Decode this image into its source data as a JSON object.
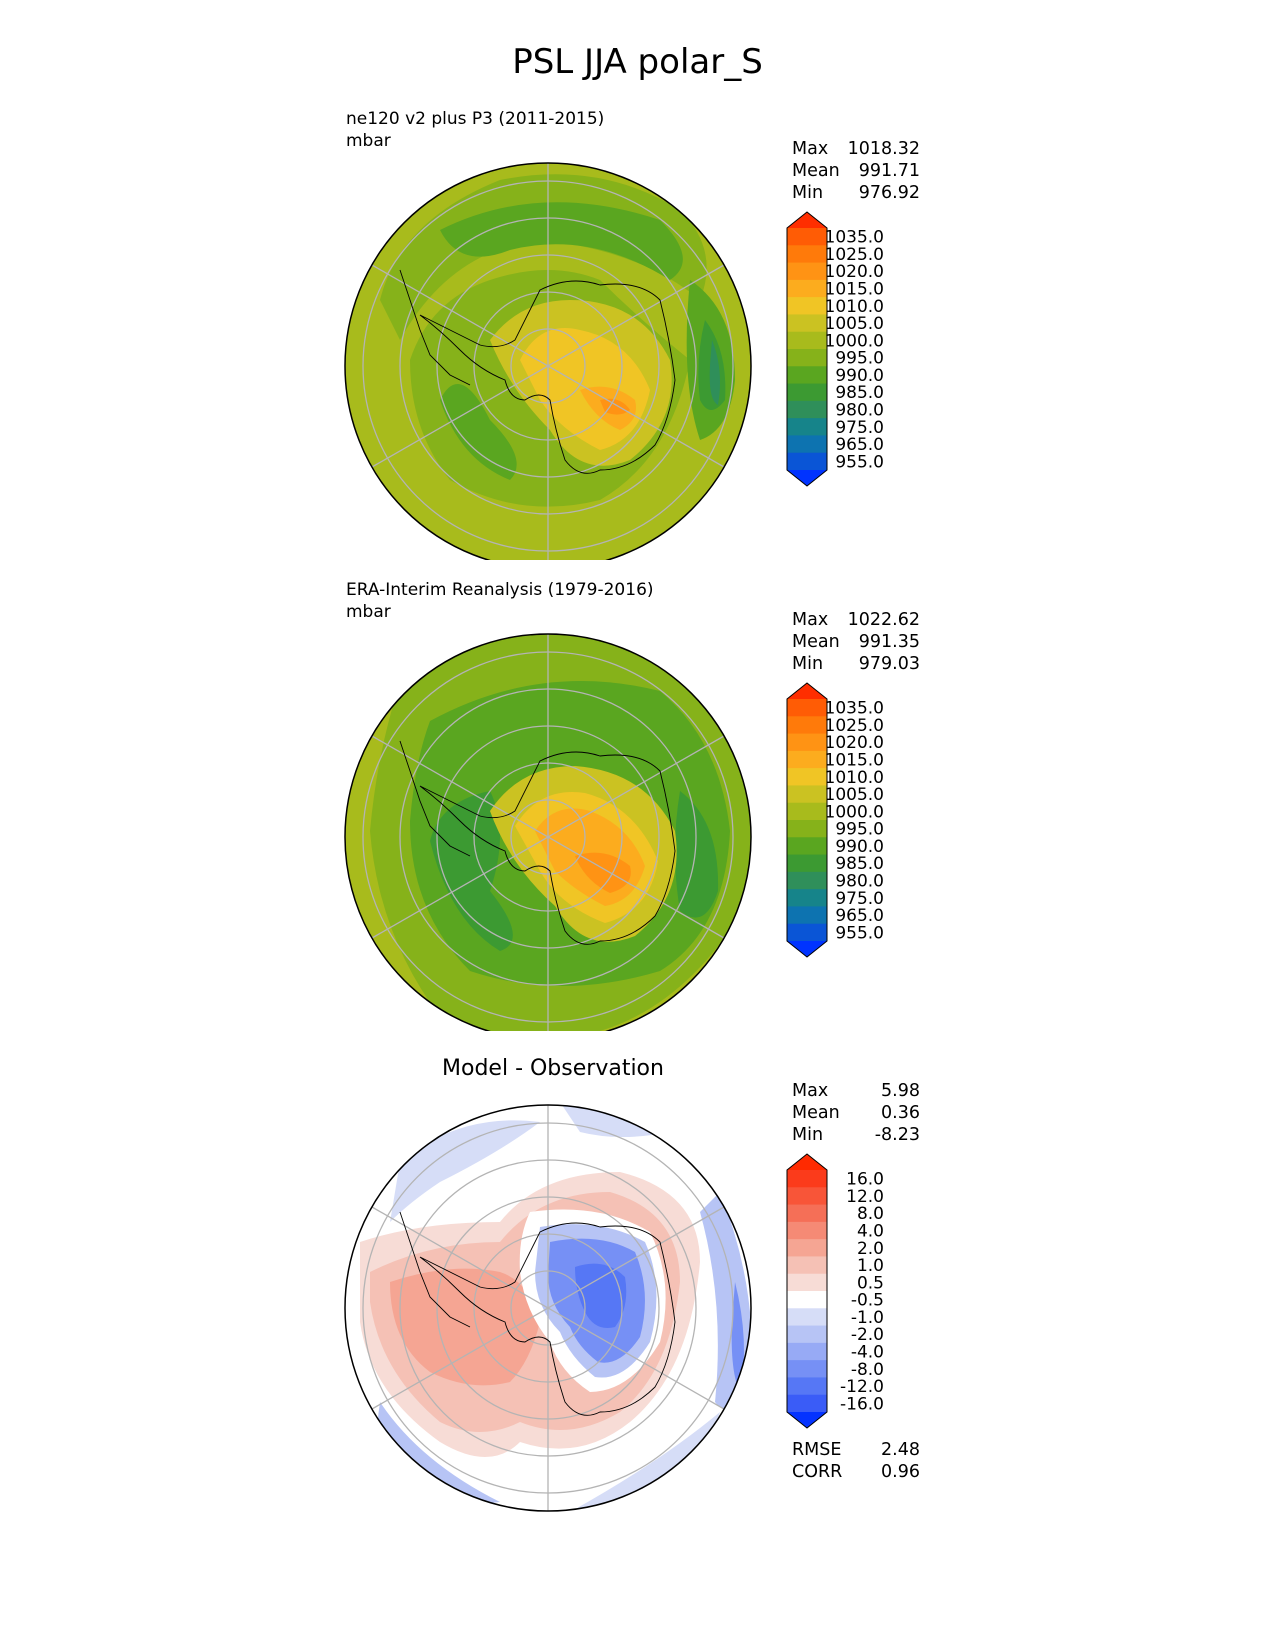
{
  "title": "PSL JJA polar_S",
  "panels": [
    {
      "subtitle": "ne120 v2 plus P3 (2011-2015)",
      "units": "mbar",
      "stats": [
        {
          "label": "Max",
          "value": "1018.32"
        },
        {
          "label": "Mean",
          "value": "991.71"
        },
        {
          "label": "Min",
          "value": "976.92"
        }
      ],
      "colorbar_ticks": [
        "1035.0",
        "1025.0",
        "1020.0",
        "1015.0",
        "1010.0",
        "1005.0",
        "1000.0",
        "995.0",
        "990.0",
        "985.0",
        "980.0",
        "975.0",
        "965.0",
        "955.0"
      ]
    },
    {
      "subtitle": "ERA-Interim Reanalysis (1979-2016)",
      "units": "mbar",
      "stats": [
        {
          "label": "Max",
          "value": "1022.62"
        },
        {
          "label": "Mean",
          "value": "991.35"
        },
        {
          "label": "Min",
          "value": "979.03"
        }
      ],
      "colorbar_ticks": [
        "1035.0",
        "1025.0",
        "1020.0",
        "1015.0",
        "1010.0",
        "1005.0",
        "1000.0",
        "995.0",
        "990.0",
        "985.0",
        "980.0",
        "975.0",
        "965.0",
        "955.0"
      ]
    },
    {
      "title": "Model - Observation",
      "stats": [
        {
          "label": "Max",
          "value": "5.98"
        },
        {
          "label": "Mean",
          "value": "0.36"
        },
        {
          "label": "Min",
          "value": "-8.23"
        }
      ],
      "colorbar_ticks": [
        "16.0",
        "12.0",
        "8.0",
        "4.0",
        "2.0",
        "1.0",
        "0.5",
        "-0.5",
        "-1.0",
        "-2.0",
        "-4.0",
        "-8.0",
        "-12.0",
        "-16.0"
      ],
      "metrics": [
        {
          "label": "RMSE",
          "value": "2.48"
        },
        {
          "label": "CORR",
          "value": "0.96"
        }
      ]
    }
  ],
  "colormaps": {
    "absolute": [
      "#0033ff",
      "#0a55d6",
      "#0d73b0",
      "#16848a",
      "#2f8f5a",
      "#3c9a32",
      "#5aa620",
      "#86b21a",
      "#a8bb1c",
      "#cbc222",
      "#f0c525",
      "#fcac1e",
      "#ff9314",
      "#ff7a0a",
      "#ff5c05",
      "#ff2e00"
    ],
    "difference": [
      "#0433ff",
      "#3a5cf7",
      "#5677f5",
      "#7690f5",
      "#97aaf5",
      "#b7c4f5",
      "#d6ddf7",
      "#ffffff",
      "#f7dcd6",
      "#f5c1b5",
      "#f5a593",
      "#f58a75",
      "#f56f57",
      "#f85538",
      "#fb3b1b",
      "#ff2a00"
    ]
  }
}
